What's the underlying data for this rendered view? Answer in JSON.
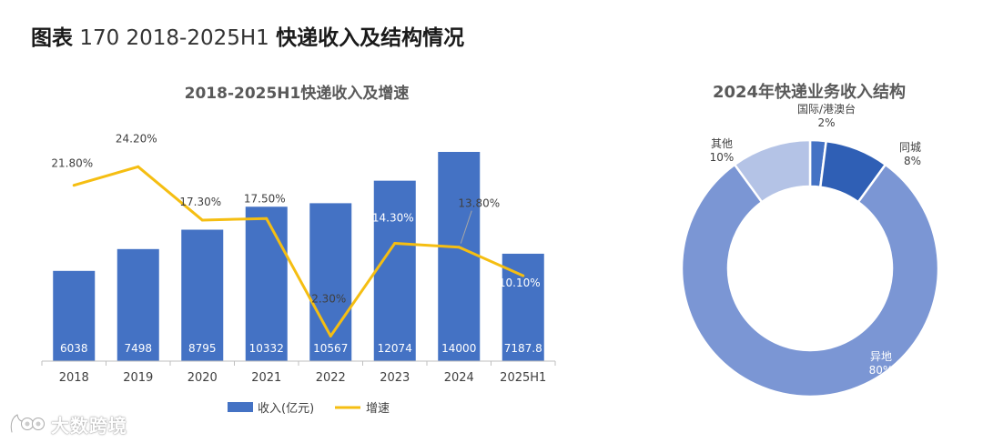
{
  "figure": {
    "label": "图表",
    "number": "170 2018-2025H1",
    "title": "快递收入及结构情况"
  },
  "watermark": {
    "text": "大数跨境",
    "logo": "owl-logo-icon"
  },
  "colors": {
    "bar": "#4472c4",
    "line": "#f5be12",
    "donut": [
      "#4472c4",
      "#2f5fb5",
      "#7b96d4",
      "#b4c3e6"
    ]
  },
  "chart_data": [
    {
      "type": "bar",
      "title": "2018-2025H1快递收入及增速",
      "categories": [
        "2018",
        "2019",
        "2020",
        "2021",
        "2022",
        "2023",
        "2024",
        "2025H1"
      ],
      "series": [
        {
          "name": "收入(亿元)",
          "type": "bar",
          "values": [
            6038,
            7498,
            8795,
            10332,
            10567,
            12074,
            14000,
            7187.8
          ],
          "labels": [
            "6038",
            "7498",
            "8795",
            "10332",
            "10567",
            "12074",
            "14000",
            "7187.8"
          ]
        },
        {
          "name": "增速",
          "type": "line",
          "values": [
            21.8,
            24.2,
            17.3,
            17.5,
            2.3,
            14.3,
            13.8,
            10.1
          ],
          "labels": [
            "21.80%",
            "24.20%",
            "17.30%",
            "17.50%",
            "2.30%",
            "14.30%",
            "13.80%",
            "10.10%"
          ]
        }
      ],
      "legend": "bottom",
      "grid": false
    },
    {
      "type": "pie",
      "subtype": "donut",
      "title": "2024年快递业务收入结构",
      "slices": [
        {
          "label": "国际/港澳台",
          "pct": "2%",
          "value": 2
        },
        {
          "label": "同城",
          "pct": "8%",
          "value": 8
        },
        {
          "label": "异地",
          "pct": "80%",
          "value": 80
        },
        {
          "label": "其他",
          "pct": "10%",
          "value": 10
        }
      ]
    }
  ]
}
